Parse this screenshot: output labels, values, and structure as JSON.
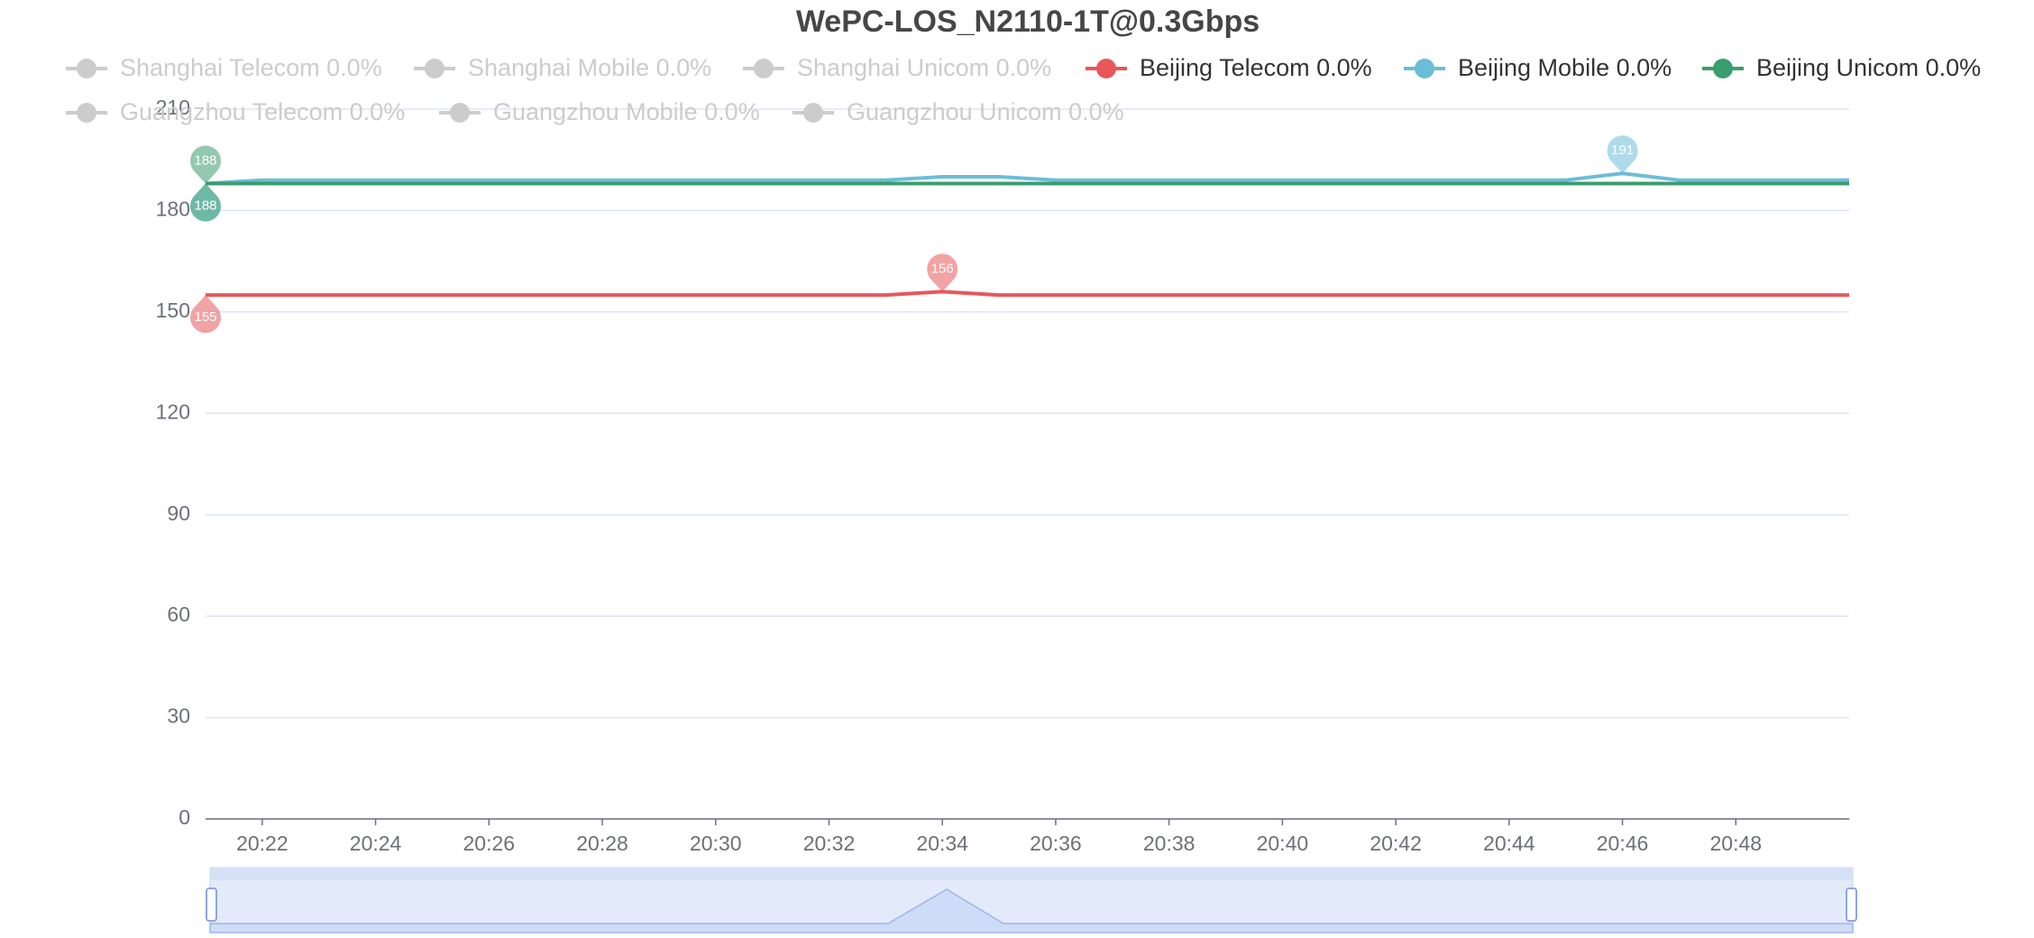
{
  "chart_data": {
    "type": "line",
    "title": "WePC-LOS_N2110-1T@0.3Gbps",
    "categories": [
      null,
      "20:22",
      null,
      "20:24",
      null,
      "20:26",
      null,
      "20:28",
      null,
      "20:30",
      null,
      "20:32",
      null,
      "20:34",
      null,
      "20:36",
      null,
      "20:38",
      null,
      "20:40",
      null,
      "20:42",
      null,
      "20:44",
      null,
      "20:46",
      null,
      "20:48",
      null,
      null
    ],
    "legend": [
      {
        "name": "Shanghai Telecom 0.0%",
        "selected": false,
        "color": "#cccccc"
      },
      {
        "name": "Shanghai Mobile 0.0%",
        "selected": false,
        "color": "#cccccc"
      },
      {
        "name": "Shanghai Unicom 0.0%",
        "selected": false,
        "color": "#cccccc"
      },
      {
        "name": "Beijing Telecom 0.0%",
        "selected": true,
        "color": "#e8575a"
      },
      {
        "name": "Beijing Mobile 0.0%",
        "selected": true,
        "color": "#6bbdd8"
      },
      {
        "name": "Beijing Unicom 0.0%",
        "selected": true,
        "color": "#3a9d6e"
      },
      {
        "name": "Guangzhou Telecom 0.0%",
        "selected": false,
        "color": "#cccccc"
      },
      {
        "name": "Guangzhou Mobile 0.0%",
        "selected": false,
        "color": "#cccccc"
      },
      {
        "name": "Guangzhou Unicom 0.0%",
        "selected": false,
        "color": "#cccccc"
      }
    ],
    "series": [
      {
        "name": "Beijing Telecom 0.0%",
        "color": "#e8575a",
        "values": [
          155,
          155,
          155,
          155,
          155,
          155,
          155,
          155,
          155,
          155,
          155,
          155,
          155,
          156,
          155,
          155,
          155,
          155,
          155,
          155,
          155,
          155,
          155,
          155,
          155,
          155,
          155,
          155,
          155,
          155
        ]
      },
      {
        "name": "Beijing Mobile 0.0%",
        "color": "#6bbdd8",
        "values": [
          188,
          189,
          189,
          189,
          189,
          189,
          189,
          189,
          189,
          189,
          189,
          189,
          189,
          190,
          190,
          189,
          189,
          189,
          189,
          189,
          189,
          189,
          189,
          189,
          189,
          191,
          189,
          189,
          189,
          189
        ]
      },
      {
        "name": "Beijing Unicom 0.0%",
        "color": "#3a9d6e",
        "values": [
          188,
          188,
          188,
          188,
          188,
          188,
          188,
          188,
          188,
          188,
          188,
          188,
          188,
          188,
          188,
          188,
          188,
          188,
          188,
          188,
          188,
          188,
          188,
          188,
          188,
          188,
          188,
          188,
          188,
          188
        ]
      }
    ],
    "mark_points": [
      "max",
      "min"
    ],
    "ylim": [
      0,
      210
    ],
    "yticks": [
      0,
      30,
      60,
      90,
      120,
      150,
      180,
      210
    ],
    "grid": true
  }
}
